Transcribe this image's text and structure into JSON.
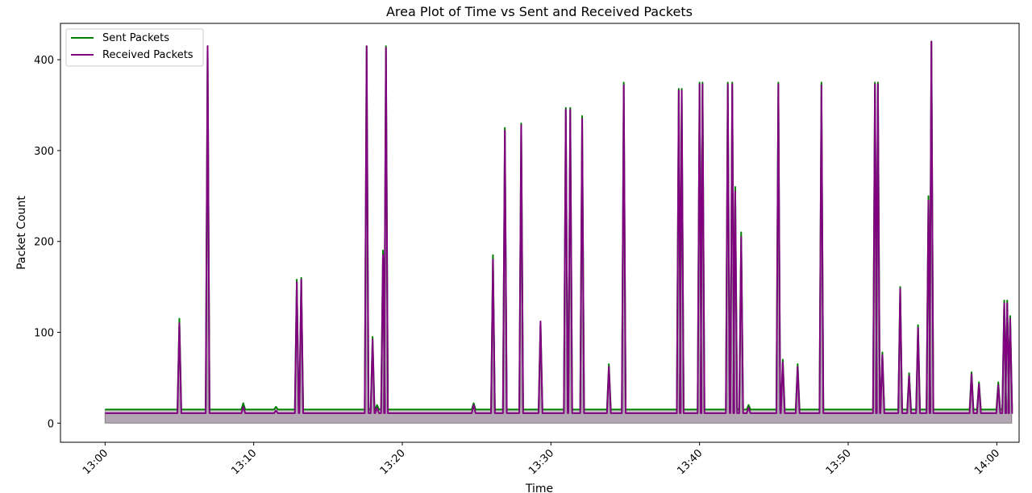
{
  "chart_data": {
    "type": "area",
    "title": "Area Plot of Time vs Sent and Received Packets",
    "xlabel": "Time",
    "ylabel": "Packet Count",
    "x_tick_labels": [
      "13:00",
      "13:10",
      "13:20",
      "13:30",
      "13:40",
      "13:50",
      "14:00"
    ],
    "x_tick_minutes": [
      0,
      10,
      20,
      30,
      40,
      50,
      60
    ],
    "xlim_minutes": [
      -3,
      61.5
    ],
    "ylim": [
      -21,
      440
    ],
    "y_ticks": [
      0,
      100,
      200,
      300,
      400
    ],
    "grid": false,
    "legend_position": "top-left",
    "colors": {
      "sent": "#008000",
      "received": "#800080",
      "area": "#9f8fa0"
    },
    "series": [
      {
        "name": "Sent Packets",
        "baseline": 15,
        "spikes": [
          [
            5.0,
            115
          ],
          [
            6.9,
            415
          ],
          [
            9.3,
            22
          ],
          [
            11.5,
            18
          ],
          [
            12.9,
            158
          ],
          [
            13.2,
            160
          ],
          [
            17.6,
            415
          ],
          [
            18.0,
            95
          ],
          [
            18.3,
            20
          ],
          [
            18.7,
            190
          ],
          [
            18.9,
            415
          ],
          [
            24.8,
            22
          ],
          [
            26.1,
            185
          ],
          [
            26.9,
            325
          ],
          [
            28.0,
            330
          ],
          [
            29.3,
            110
          ],
          [
            31.0,
            347
          ],
          [
            31.3,
            347
          ],
          [
            32.1,
            338
          ],
          [
            33.9,
            65
          ],
          [
            34.9,
            375
          ],
          [
            38.6,
            368
          ],
          [
            38.8,
            368
          ],
          [
            40.0,
            375
          ],
          [
            40.2,
            375
          ],
          [
            41.9,
            375
          ],
          [
            42.2,
            375
          ],
          [
            42.4,
            260
          ],
          [
            42.8,
            210
          ],
          [
            43.3,
            20
          ],
          [
            45.3,
            375
          ],
          [
            45.6,
            70
          ],
          [
            46.6,
            65
          ],
          [
            48.2,
            375
          ],
          [
            51.8,
            375
          ],
          [
            52.0,
            375
          ],
          [
            52.3,
            78
          ],
          [
            53.5,
            150
          ],
          [
            54.1,
            55
          ],
          [
            54.7,
            108
          ],
          [
            55.4,
            250
          ],
          [
            55.6,
            420
          ],
          [
            58.3,
            56
          ],
          [
            58.8,
            45
          ],
          [
            60.1,
            45
          ],
          [
            60.5,
            135
          ],
          [
            60.7,
            135
          ],
          [
            60.9,
            118
          ]
        ]
      },
      {
        "name": "Received Packets",
        "baseline": 11,
        "spikes": [
          [
            5.0,
            110
          ],
          [
            6.9,
            415
          ],
          [
            9.3,
            18
          ],
          [
            11.5,
            14
          ],
          [
            12.9,
            155
          ],
          [
            13.2,
            158
          ],
          [
            17.6,
            415
          ],
          [
            18.0,
            92
          ],
          [
            18.3,
            17
          ],
          [
            18.7,
            185
          ],
          [
            18.9,
            413
          ],
          [
            24.8,
            20
          ],
          [
            26.1,
            180
          ],
          [
            26.9,
            322
          ],
          [
            28.0,
            328
          ],
          [
            29.3,
            112
          ],
          [
            31.0,
            345
          ],
          [
            31.3,
            345
          ],
          [
            32.1,
            335
          ],
          [
            33.9,
            62
          ],
          [
            34.9,
            372
          ],
          [
            38.6,
            366
          ],
          [
            38.8,
            366
          ],
          [
            40.0,
            373
          ],
          [
            40.2,
            373
          ],
          [
            41.9,
            373
          ],
          [
            42.2,
            373
          ],
          [
            42.4,
            255
          ],
          [
            42.8,
            205
          ],
          [
            43.3,
            17
          ],
          [
            45.3,
            373
          ],
          [
            45.6,
            67
          ],
          [
            46.6,
            62
          ],
          [
            48.2,
            372
          ],
          [
            51.8,
            373
          ],
          [
            52.0,
            373
          ],
          [
            52.3,
            75
          ],
          [
            53.5,
            148
          ],
          [
            54.1,
            52
          ],
          [
            54.7,
            105
          ],
          [
            55.4,
            245
          ],
          [
            55.6,
            420
          ],
          [
            58.3,
            54
          ],
          [
            58.8,
            43
          ],
          [
            60.1,
            42
          ],
          [
            60.5,
            132
          ],
          [
            60.7,
            132
          ],
          [
            60.9,
            115
          ]
        ]
      }
    ]
  }
}
